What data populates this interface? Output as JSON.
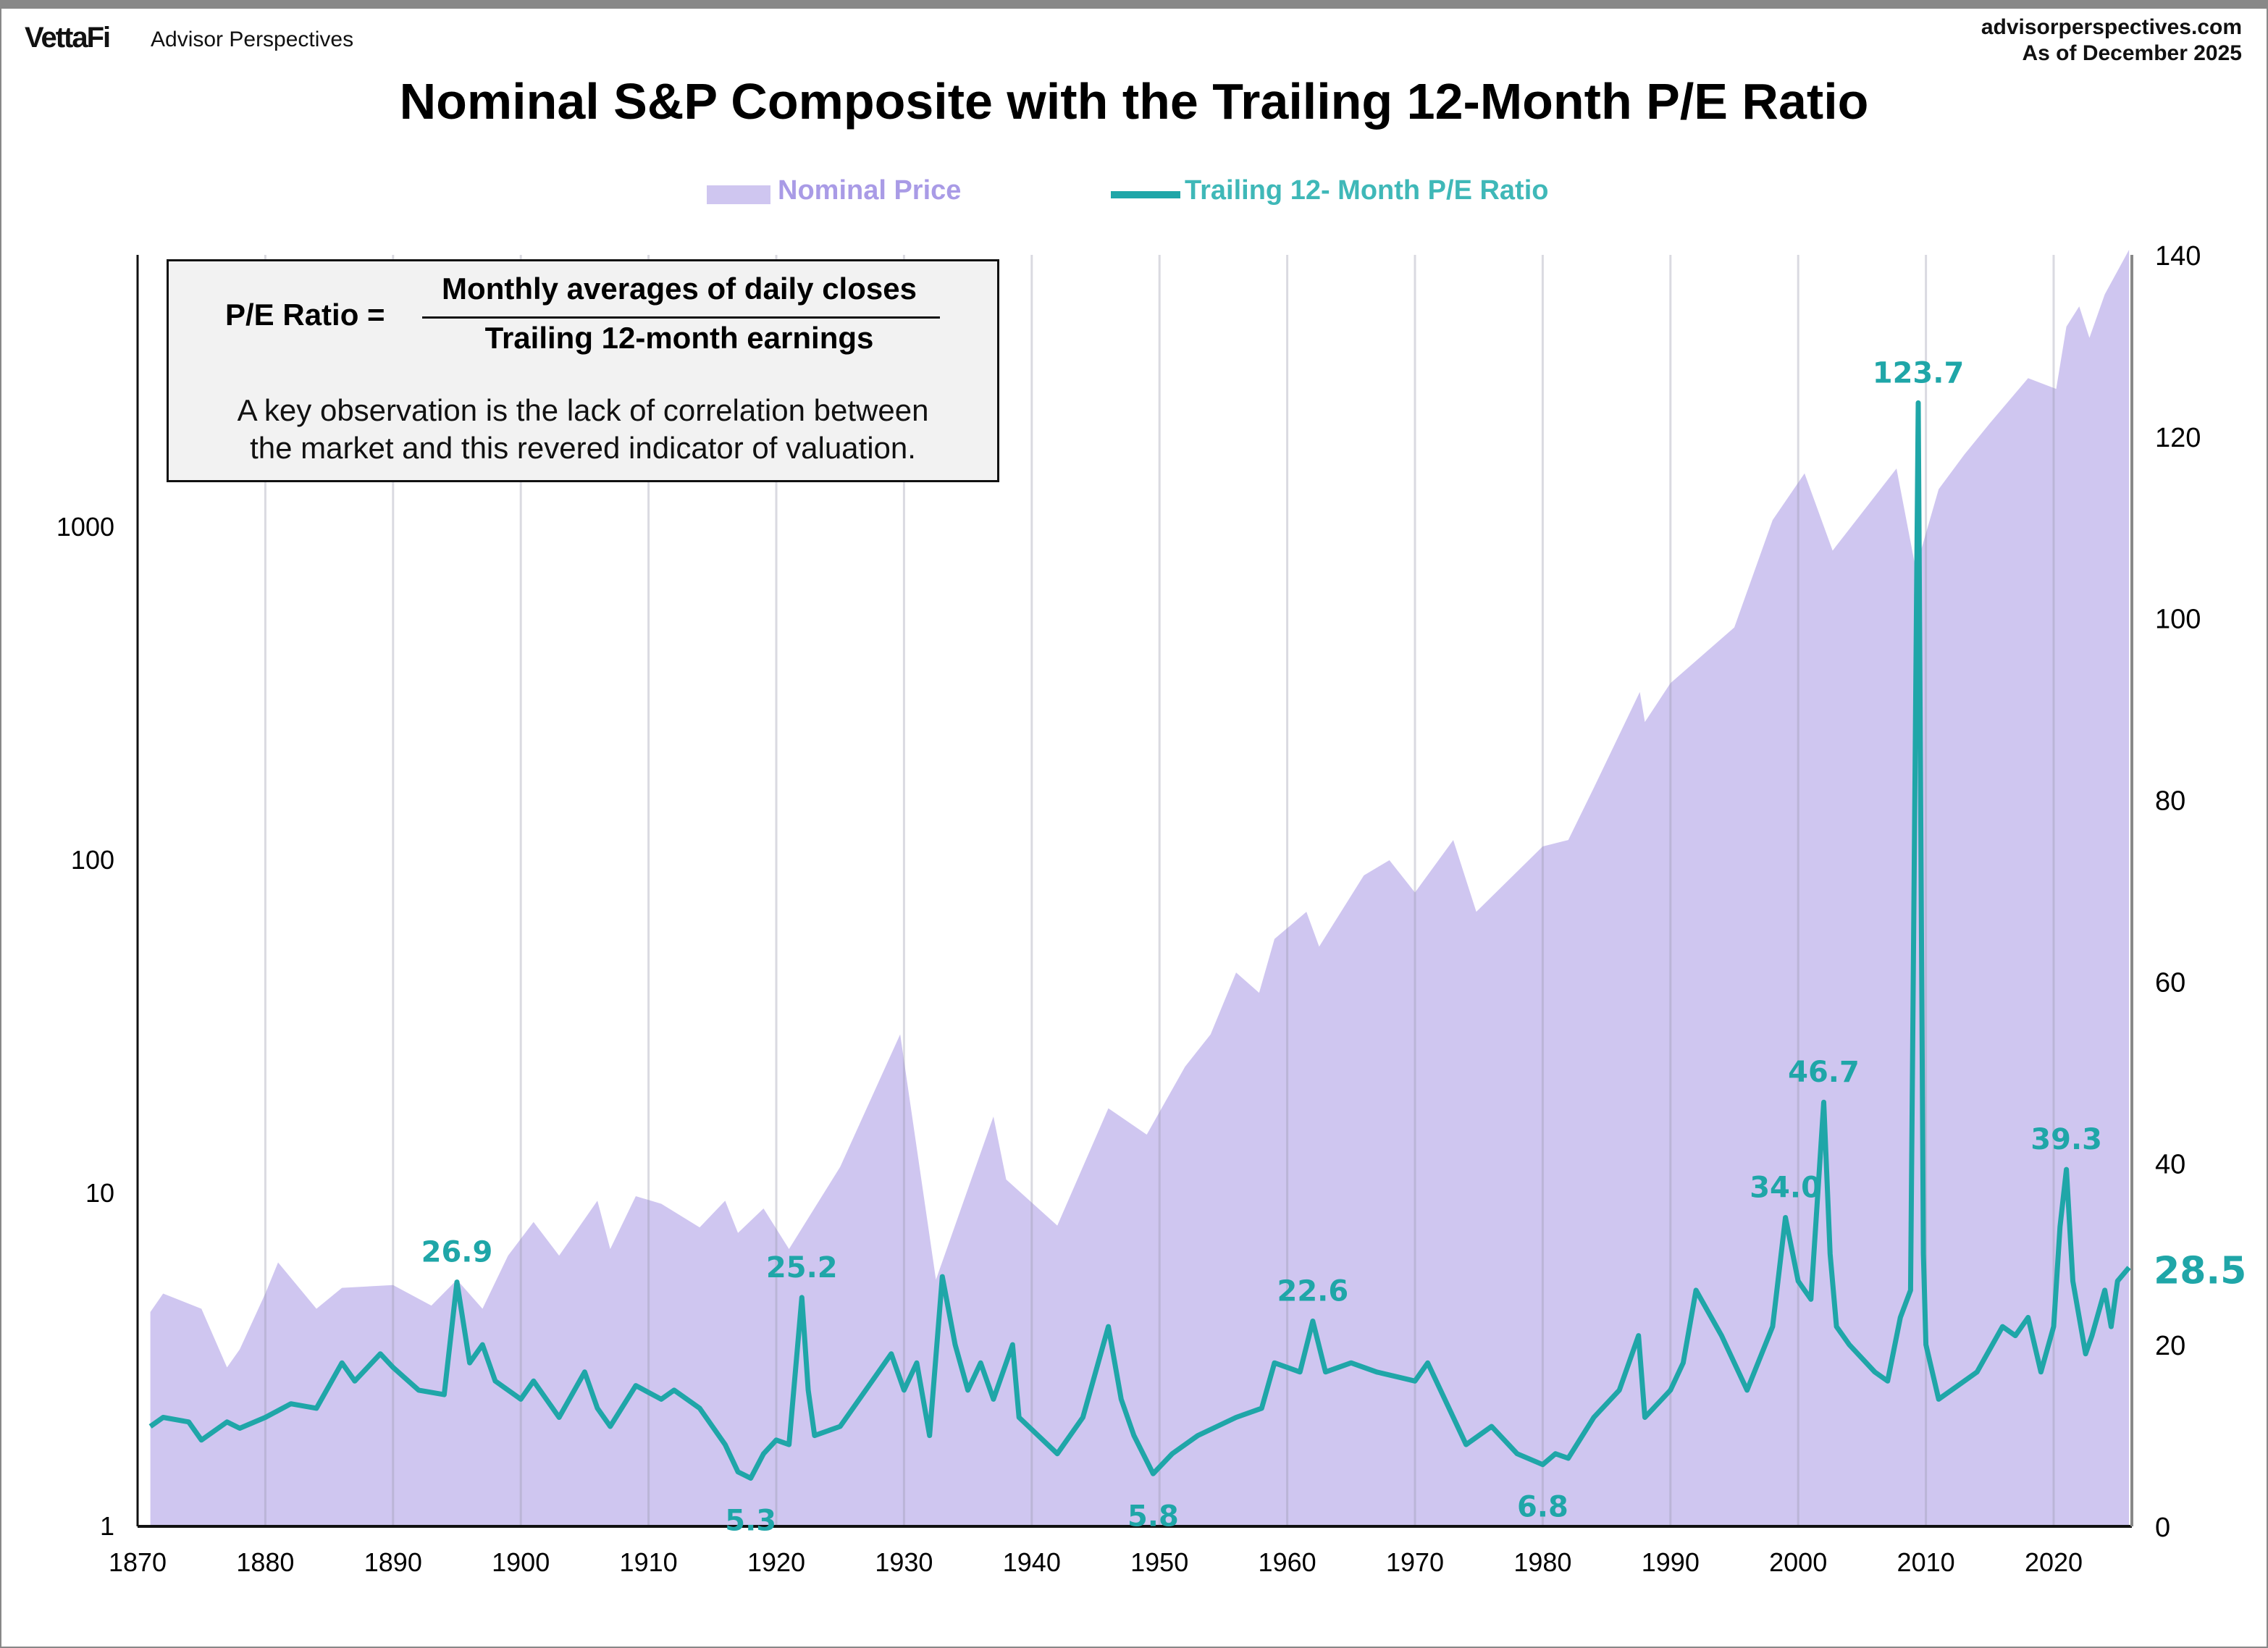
{
  "header": {
    "logo": "VettaFi",
    "logo_sub": "Advisor Perspectives",
    "source": "advisorperspectives.com",
    "as_of": "As of December 2025"
  },
  "info_box": {
    "lhs": "P/E Ratio =",
    "numerator": "Monthly averages of daily closes",
    "denominator": "Trailing 12-month earnings",
    "observation_line1": "A key observation is the lack of correlation between",
    "observation_line2": "the market and this revered indicator of valuation."
  },
  "colors": {
    "price_fill": "#cfc6f0",
    "pe_line": "#1fa6a8",
    "price_legend_text": "#a99be6",
    "pe_legend_text": "#3fb8b8"
  },
  "chart_data": {
    "type": "area+line",
    "title": "Nominal S&P Composite with the Trailing 12-Month P/E Ratio",
    "legend": {
      "position": "top",
      "entries": [
        "Nominal Price",
        "Trailing 12- Month P/E Ratio"
      ]
    },
    "x_axis": {
      "range": [
        1870,
        2026
      ],
      "ticks": [
        "1870",
        "1880",
        "1890",
        "1900",
        "1910",
        "1920",
        "1930",
        "1940",
        "1950",
        "1960",
        "1970",
        "1980",
        "1990",
        "2000",
        "2010",
        "2020"
      ],
      "grid": "vertical"
    },
    "y_left": {
      "scale": "log",
      "range": [
        1,
        6560
      ],
      "ticks": [
        "1",
        "10",
        "100",
        "1000"
      ]
    },
    "y_right": {
      "scale": "linear",
      "range": [
        0,
        140
      ],
      "ticks": [
        "0",
        "20",
        "40",
        "60",
        "80",
        "100",
        "120",
        "140"
      ]
    },
    "series": [
      {
        "name": "Nominal Price",
        "axis": "left",
        "type": "area",
        "points": [
          [
            1871,
            4.4
          ],
          [
            1872,
            5
          ],
          [
            1875,
            4.5
          ],
          [
            1877,
            3.0
          ],
          [
            1878,
            3.4
          ],
          [
            1880,
            5
          ],
          [
            1881,
            6.2
          ],
          [
            1884,
            4.5
          ],
          [
            1886,
            5.2
          ],
          [
            1890,
            5.3
          ],
          [
            1893,
            4.6
          ],
          [
            1895,
            5.5
          ],
          [
            1897,
            4.5
          ],
          [
            1899,
            6.5
          ],
          [
            1901,
            8.2
          ],
          [
            1903,
            6.5
          ],
          [
            1906,
            9.5
          ],
          [
            1907,
            6.8
          ],
          [
            1909,
            9.8
          ],
          [
            1911,
            9.3
          ],
          [
            1914,
            7.9
          ],
          [
            1916,
            9.5
          ],
          [
            1917,
            7.6
          ],
          [
            1919,
            9
          ],
          [
            1921,
            6.8
          ],
          [
            1925,
            12
          ],
          [
            1929.7,
            30
          ],
          [
            1932.5,
            5.5
          ],
          [
            1937,
            17
          ],
          [
            1938,
            11
          ],
          [
            1942,
            8
          ],
          [
            1946,
            18
          ],
          [
            1949,
            15
          ],
          [
            1952,
            24
          ],
          [
            1954,
            30
          ],
          [
            1956,
            46
          ],
          [
            1957.8,
            40
          ],
          [
            1959,
            58
          ],
          [
            1961.5,
            70
          ],
          [
            1962.5,
            55
          ],
          [
            1966,
            90
          ],
          [
            1968,
            100
          ],
          [
            1970,
            80
          ],
          [
            1973,
            115
          ],
          [
            1974.8,
            70
          ],
          [
            1980,
            110
          ],
          [
            1982,
            115
          ],
          [
            1984,
            165
          ],
          [
            1987.6,
            320
          ],
          [
            1988,
            260
          ],
          [
            1990,
            340
          ],
          [
            1995,
            500
          ],
          [
            1998,
            1050
          ],
          [
            2000.5,
            1450
          ],
          [
            2002.7,
            850
          ],
          [
            2003,
            880
          ],
          [
            2007.7,
            1500
          ],
          [
            2009.2,
            750
          ],
          [
            2011,
            1300
          ],
          [
            2013,
            1650
          ],
          [
            2015,
            2050
          ],
          [
            2018,
            2800
          ],
          [
            2020.2,
            2600
          ],
          [
            2021,
            4000
          ],
          [
            2022,
            4600
          ],
          [
            2022.8,
            3700
          ],
          [
            2024,
            5000
          ],
          [
            2025.9,
            6800
          ]
        ]
      },
      {
        "name": "Trailing 12- Month P/E Ratio",
        "axis": "right",
        "type": "line",
        "points": [
          [
            1871,
            11
          ],
          [
            1872,
            12
          ],
          [
            1874,
            11.5
          ],
          [
            1875,
            9.5
          ],
          [
            1877,
            11.5
          ],
          [
            1878,
            10.8
          ],
          [
            1880,
            12
          ],
          [
            1882,
            13.5
          ],
          [
            1884,
            13
          ],
          [
            1886,
            18
          ],
          [
            1887,
            16
          ],
          [
            1889,
            19
          ],
          [
            1890,
            17.5
          ],
          [
            1892,
            15
          ],
          [
            1894,
            14.5
          ],
          [
            1895,
            26.9
          ],
          [
            1896,
            18
          ],
          [
            1897,
            20
          ],
          [
            1898,
            16
          ],
          [
            1900,
            14
          ],
          [
            1901,
            16
          ],
          [
            1903,
            12
          ],
          [
            1905,
            17
          ],
          [
            1906,
            13
          ],
          [
            1907,
            11
          ],
          [
            1909,
            15.5
          ],
          [
            1911,
            14
          ],
          [
            1912,
            15
          ],
          [
            1914,
            13
          ],
          [
            1916,
            9
          ],
          [
            1917,
            6
          ],
          [
            1918,
            5.3
          ],
          [
            1919,
            8
          ],
          [
            1920,
            9.5
          ],
          [
            1921,
            9
          ],
          [
            1922,
            25.2
          ],
          [
            1922.5,
            15
          ],
          [
            1923,
            10
          ],
          [
            1925,
            11
          ],
          [
            1927,
            15
          ],
          [
            1929,
            19
          ],
          [
            1930,
            15
          ],
          [
            1931,
            18
          ],
          [
            1932,
            10
          ],
          [
            1933,
            27.5
          ],
          [
            1934,
            20
          ],
          [
            1935,
            15
          ],
          [
            1936,
            18
          ],
          [
            1937,
            14
          ],
          [
            1938.5,
            20
          ],
          [
            1939,
            12
          ],
          [
            1942,
            8
          ],
          [
            1944,
            12
          ],
          [
            1946,
            22
          ],
          [
            1947,
            14
          ],
          [
            1948,
            10
          ],
          [
            1949.5,
            5.8
          ],
          [
            1951,
            8
          ],
          [
            1953,
            10
          ],
          [
            1956,
            12
          ],
          [
            1958,
            13
          ],
          [
            1959,
            18
          ],
          [
            1961,
            17
          ],
          [
            1962,
            22.6
          ],
          [
            1963,
            17
          ],
          [
            1965,
            18
          ],
          [
            1967,
            17
          ],
          [
            1970,
            16
          ],
          [
            1971,
            18
          ],
          [
            1974,
            9
          ],
          [
            1976,
            11
          ],
          [
            1978,
            8
          ],
          [
            1980,
            6.8
          ],
          [
            1981,
            8
          ],
          [
            1982,
            7.5
          ],
          [
            1984,
            12
          ],
          [
            1986,
            15
          ],
          [
            1987.5,
            21
          ],
          [
            1988,
            12
          ],
          [
            1990,
            15
          ],
          [
            1991,
            18
          ],
          [
            1992,
            26
          ],
          [
            1994,
            21
          ],
          [
            1996,
            15
          ],
          [
            1998,
            22
          ],
          [
            1999,
            34.0
          ],
          [
            2000,
            27
          ],
          [
            2001,
            25
          ],
          [
            2002,
            46.7
          ],
          [
            2002.5,
            30
          ],
          [
            2003,
            22
          ],
          [
            2004,
            20
          ],
          [
            2006,
            17
          ],
          [
            2007,
            16
          ],
          [
            2008,
            23
          ],
          [
            2008.8,
            26
          ],
          [
            2009.4,
            123.7
          ],
          [
            2009.8,
            30
          ],
          [
            2010,
            20
          ],
          [
            2011,
            14
          ],
          [
            2012,
            15
          ],
          [
            2014,
            17
          ],
          [
            2016,
            22
          ],
          [
            2017,
            21
          ],
          [
            2018,
            23
          ],
          [
            2019,
            17
          ],
          [
            2020,
            22
          ],
          [
            2020.5,
            33
          ],
          [
            2021,
            39.3
          ],
          [
            2021.5,
            27
          ],
          [
            2022.5,
            19
          ],
          [
            2023,
            21
          ],
          [
            2024,
            26
          ],
          [
            2024.5,
            22
          ],
          [
            2025,
            27
          ],
          [
            2025.9,
            28.5
          ]
        ]
      }
    ],
    "annotations": [
      {
        "year": 1895,
        "value": 26.9,
        "label": "26.9",
        "pos": "above"
      },
      {
        "year": 1918,
        "value": 5.3,
        "label": "5.3",
        "pos": "below"
      },
      {
        "year": 1922,
        "value": 25.2,
        "label": "25.2",
        "pos": "above"
      },
      {
        "year": 1949.5,
        "value": 5.8,
        "label": "5.8",
        "pos": "below"
      },
      {
        "year": 1962,
        "value": 22.6,
        "label": "22.6",
        "pos": "above"
      },
      {
        "year": 1980,
        "value": 6.8,
        "label": "6.8",
        "pos": "below"
      },
      {
        "year": 1999,
        "value": 34.0,
        "label": "34.0",
        "pos": "above"
      },
      {
        "year": 2002,
        "value": 46.7,
        "label": "46.7",
        "pos": "above"
      },
      {
        "year": 2009.4,
        "value": 123.7,
        "label": "123.7",
        "pos": "above"
      },
      {
        "year": 2021,
        "value": 39.3,
        "label": "39.3",
        "pos": "above"
      },
      {
        "year": 2025.9,
        "value": 28.5,
        "label": "28.5",
        "pos": "right"
      }
    ]
  }
}
